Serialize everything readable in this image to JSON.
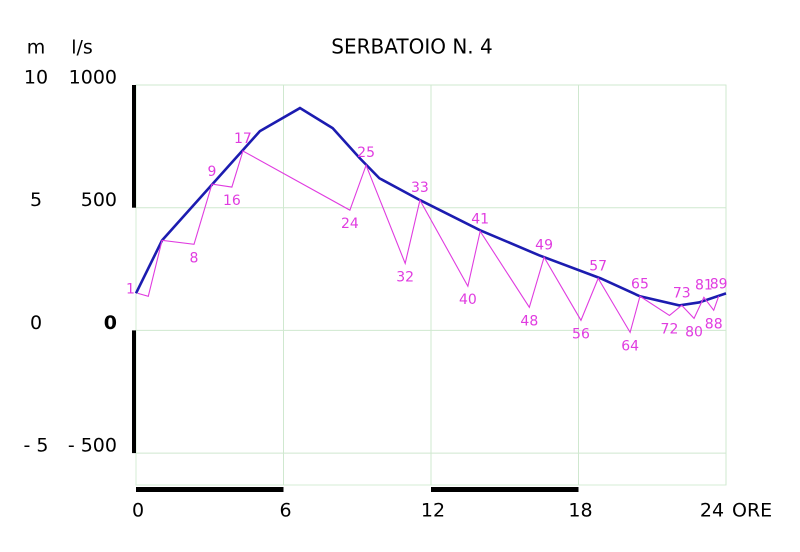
{
  "chart_data": {
    "type": "line",
    "title": "SERBATOIO N. 4",
    "x_label": "ORE",
    "y_label": "l/s",
    "y2_label": "m",
    "xlim": [
      0,
      24
    ],
    "xticks": [
      0,
      6,
      12,
      18,
      24
    ],
    "ylim": [
      -630,
      1000
    ],
    "yticks": [
      1000,
      500,
      0,
      {
        "value": -500,
        "label": "- 500"
      }
    ],
    "y2lim": [
      -6.3,
      10
    ],
    "y2ticks": [
      10,
      5,
      0,
      {
        "value": -5,
        "label": "- 5"
      }
    ],
    "grid": true,
    "series": [
      {
        "color": "#1c1cb0",
        "x": [
          0,
          1.06,
          5.04,
          6.67,
          8.0,
          9.1,
          9.9,
          11.55,
          14.0,
          16.4,
          18.9,
          20.5,
          22.1,
          22.9,
          24
        ],
        "values": [
          151,
          367,
          812,
          906,
          824,
          702,
          620,
          531,
          408,
          306,
          212,
          139,
          102,
          114,
          151
        ]
      },
      {
        "color": "#e03ce0",
        "x": [
          0.08,
          0.5,
          1.06,
          2.36,
          3.09,
          3.9,
          4.35,
          8.7,
          9.36,
          10.95,
          11.55,
          13.5,
          14.0,
          16.0,
          16.6,
          18.1,
          18.8,
          20.1,
          20.5,
          21.7,
          22.2,
          22.7,
          23.1,
          23.5,
          23.7
        ],
        "values": [
          151,
          139,
          367,
          351,
          596,
          584,
          731,
          490,
          673,
          273,
          531,
          180,
          404,
          94,
          298,
          41,
          212,
          -8,
          139,
          61,
          102,
          49,
          135,
          82,
          139
        ],
        "point_labels": [
          "1",
          null,
          null,
          "8",
          "9",
          "16",
          "17",
          "24",
          "25",
          "32",
          "33",
          "40",
          "41",
          "48",
          "49",
          "56",
          "57",
          "64",
          "65",
          "72",
          "73",
          "80",
          "81",
          "88",
          "89"
        ]
      }
    ]
  }
}
